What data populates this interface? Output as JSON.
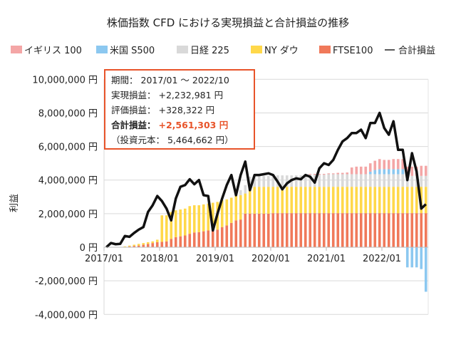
{
  "chart_data": {
    "type": "bar",
    "stacked": true,
    "title": "株価指数 CFD における実現損益と合計損益の推移",
    "ylabel": "利益",
    "xlabel": "",
    "ylim": [
      -4000000,
      10000000
    ],
    "y_ticks": [
      -4000000,
      -2000000,
      0,
      2000000,
      4000000,
      6000000,
      8000000,
      10000000
    ],
    "y_tick_labels": [
      "-4,000,000 円",
      "-2,000,000 円",
      "0 円",
      "2,000,000 円",
      "4,000,000 円",
      "6,000,000 円",
      "8,000,000 円",
      "10,000,000 円"
    ],
    "x_tick_labels": [
      "2017/01",
      "2018/01",
      "2019/01",
      "2020/01",
      "2021/01",
      "2022/01"
    ],
    "x_range": [
      "2017/01",
      "2022/10"
    ],
    "grid": "horizontal",
    "legend_position": "top",
    "series": [
      {
        "name": "FTSE100",
        "kind": "bar",
        "color": "#f0795a",
        "values": [
          0,
          0,
          0,
          0,
          20000,
          50000,
          80000,
          100000,
          150000,
          200000,
          250000,
          300000,
          320000,
          350000,
          500000,
          600000,
          650000,
          700000,
          800000,
          880000,
          900000,
          950000,
          1000000,
          1000000,
          1050000,
          1200000,
          1300000,
          1450000,
          1600000,
          1650000,
          2000000,
          2000000,
          2000000,
          2000000,
          2000000,
          2000000,
          2030000,
          2030000,
          2030000,
          2030000,
          2030000,
          2030000,
          2030000,
          2030000,
          2030000,
          2030000,
          2030000,
          2030000,
          2030000,
          2030000,
          2030000,
          2030000,
          2030000,
          2030000,
          2030000,
          2030000,
          2030000,
          2030000,
          2030000,
          2030000,
          2030000,
          2030000,
          2030000,
          2030000,
          2030000,
          2030000,
          2030000,
          2030000,
          2030000,
          2030000
        ]
      },
      {
        "name": "NY ダウ",
        "kind": "bar",
        "color": "#ffd84a",
        "values": [
          0,
          0,
          0,
          0,
          30000,
          50000,
          70000,
          100000,
          100000,
          100000,
          100000,
          150000,
          1580000,
          1550000,
          1600000,
          1600000,
          1600000,
          1600000,
          1650000,
          1620000,
          1600000,
          1600000,
          1600000,
          1650000,
          1650000,
          1600000,
          1550000,
          1500000,
          1450000,
          1450000,
          1200000,
          1600000,
          1600000,
          1600000,
          1600000,
          1600000,
          1570000,
          1570000,
          1570000,
          1570000,
          1570000,
          1570000,
          1570000,
          1570000,
          1570000,
          1570000,
          1570000,
          1570000,
          1570000,
          1570000,
          1570000,
          1570000,
          1570000,
          1570000,
          1570000,
          1570000,
          1570000,
          1570000,
          1570000,
          1570000,
          1570000,
          1570000,
          1570000,
          1570000,
          1570000,
          1570000,
          1570000,
          1570000,
          1570000,
          1570000
        ]
      },
      {
        "name": "日経 225",
        "kind": "bar",
        "color": "#d9d9d9",
        "values": [
          0,
          0,
          0,
          0,
          0,
          0,
          0,
          0,
          0,
          0,
          0,
          0,
          0,
          0,
          0,
          0,
          0,
          0,
          0,
          0,
          0,
          0,
          0,
          0,
          0,
          0,
          0,
          0,
          200000,
          300000,
          500000,
          600000,
          650000,
          650000,
          650000,
          650000,
          680000,
          680000,
          680000,
          680000,
          680000,
          680000,
          680000,
          680000,
          720000,
          720000,
          720000,
          720000,
          750000,
          750000,
          750000,
          750000,
          750000,
          750000,
          750000,
          750000,
          750000,
          750000,
          750000,
          750000,
          750000,
          750000,
          750000,
          750000,
          750000,
          650000,
          650000,
          650000,
          650000,
          650000
        ]
      },
      {
        "name": "米国 S500",
        "kind": "bar",
        "color": "#8cc8f0",
        "values": [
          0,
          0,
          0,
          0,
          0,
          0,
          0,
          0,
          0,
          0,
          0,
          0,
          0,
          0,
          0,
          0,
          0,
          0,
          0,
          0,
          0,
          0,
          0,
          0,
          0,
          0,
          0,
          0,
          0,
          0,
          0,
          0,
          0,
          0,
          0,
          0,
          0,
          0,
          0,
          0,
          0,
          0,
          0,
          0,
          0,
          0,
          0,
          0,
          0,
          0,
          0,
          0,
          0,
          0,
          0,
          0,
          0,
          150000,
          250000,
          300000,
          300000,
          300000,
          300000,
          300000,
          300000,
          -1200000,
          -1200000,
          -1200000,
          -1300000,
          -2650000
        ]
      },
      {
        "name": "イギリス 100",
        "kind": "bar",
        "color": "#f4a6a6",
        "values": [
          0,
          0,
          0,
          0,
          0,
          0,
          0,
          0,
          0,
          0,
          0,
          0,
          0,
          0,
          0,
          0,
          0,
          0,
          0,
          0,
          0,
          0,
          0,
          0,
          0,
          0,
          0,
          0,
          0,
          0,
          0,
          0,
          0,
          0,
          0,
          0,
          0,
          0,
          0,
          0,
          0,
          0,
          0,
          0,
          50000,
          50000,
          50000,
          50000,
          50000,
          50000,
          80000,
          80000,
          100000,
          400000,
          450000,
          450000,
          450000,
          500000,
          550000,
          600000,
          550000,
          550000,
          600000,
          600000,
          600000,
          550000,
          550000,
          550000,
          600000,
          600000
        ]
      },
      {
        "name": "合計損益",
        "kind": "line",
        "color": "#111111",
        "values": [
          0,
          250000,
          180000,
          200000,
          670000,
          620000,
          850000,
          1050000,
          1200000,
          2100000,
          2500000,
          3050000,
          2750000,
          2300000,
          1600000,
          2900000,
          3600000,
          3700000,
          4050000,
          3750000,
          4000000,
          3100000,
          3050000,
          1000000,
          2000000,
          2900000,
          3700000,
          4300000,
          3100000,
          4300000,
          5100000,
          3400000,
          4300000,
          4300000,
          4350000,
          4400000,
          4300000,
          3900000,
          3450000,
          3800000,
          4000000,
          4100000,
          4050000,
          4300000,
          4200000,
          3850000,
          4700000,
          5000000,
          4900000,
          5200000,
          5800000,
          6300000,
          6500000,
          6800000,
          6800000,
          7000000,
          6500000,
          7400000,
          7400000,
          8000000,
          7100000,
          6700000,
          7500000,
          5800000,
          5800000,
          4000000,
          5600000,
          4500000,
          2300000,
          2561303
        ]
      }
    ]
  },
  "infobox": {
    "period_label": "期間：",
    "period_value": "2017/01 ～ 2022/10",
    "realized_label": "実現損益：",
    "realized_value": "+2,232,981 円",
    "unrealized_label": "評価損益：",
    "unrealized_value": "+328,322 円",
    "total_label": "合計損益：",
    "total_value": "+2,561,303 円",
    "principal_text": "（投資元本： 5,464,662 円）",
    "accent_color": "#e8542a"
  }
}
